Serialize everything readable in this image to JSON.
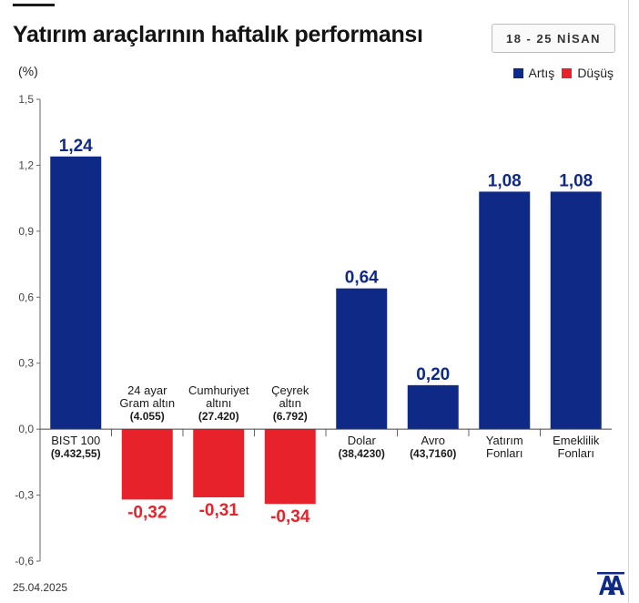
{
  "header": {
    "title": "Yatırım araçlarının haftalık performansı",
    "date_range": "18 - 25 NİSAN"
  },
  "footer": {
    "date": "25.04.2025",
    "logo_text": "AA"
  },
  "colors": {
    "increase": "#0f2a86",
    "decrease": "#e8222a"
  },
  "chart_data": {
    "type": "bar",
    "title": "Yatırım araçlarının haftalık performansı",
    "ylabel": "(%)",
    "ylim": [
      -0.6,
      1.5
    ],
    "yticks": [
      "1,5",
      "1,2",
      "0,9",
      "0,6",
      "0,3",
      "0,0",
      "-0,3",
      "-0,6"
    ],
    "ytick_values": [
      1.5,
      1.2,
      0.9,
      0.6,
      0.3,
      0.0,
      -0.3,
      -0.6
    ],
    "legend": [
      {
        "label": "Artış",
        "color": "#0f2a86"
      },
      {
        "label": "Düşüş",
        "color": "#e8222a"
      }
    ],
    "legend_position": "top-right",
    "grid": false,
    "categories": [
      {
        "lines": [
          "BIST 100",
          "(9.432,55)"
        ],
        "value": 1.24,
        "value_label": "1,24"
      },
      {
        "lines": [
          "24 ayar",
          "Gram altın",
          "(4.055)"
        ],
        "value": -0.32,
        "value_label": "-0,32"
      },
      {
        "lines": [
          "Cumhuriyet",
          "altını",
          "(27.420)"
        ],
        "value": -0.31,
        "value_label": "-0,31"
      },
      {
        "lines": [
          "Çeyrek",
          "altın",
          "(6.792)"
        ],
        "value": -0.34,
        "value_label": "-0,34"
      },
      {
        "lines": [
          "Dolar",
          "(38,4230)"
        ],
        "value": 0.64,
        "value_label": "0,64"
      },
      {
        "lines": [
          "Avro",
          "(43,7160)"
        ],
        "value": 0.2,
        "value_label": "0,20"
      },
      {
        "lines": [
          "Yatırım",
          "Fonları"
        ],
        "value": 1.08,
        "value_label": "1,08"
      },
      {
        "lines": [
          "Emeklilik",
          "Fonları"
        ],
        "value": 1.08,
        "value_label": "1,08"
      }
    ]
  }
}
